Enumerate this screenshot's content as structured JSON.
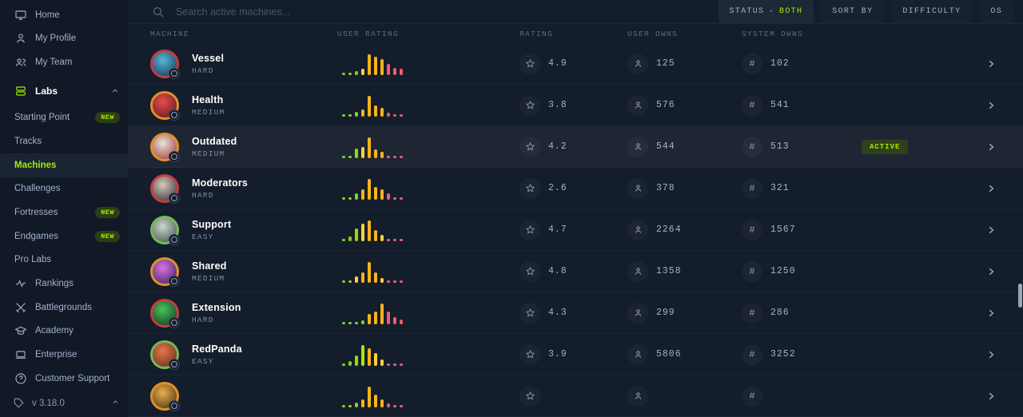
{
  "search": {
    "placeholder": "Search active machines..."
  },
  "filters": {
    "status_label": "STATUS",
    "status_separator": "•",
    "status_value": "BOTH",
    "sort_by_label": "SORT BY",
    "difficulty_label": "DIFFICULTY",
    "os_label": "OS"
  },
  "icons": {
    "system_owns_glyph": "#",
    "row_chevron": "›",
    "section_chevron": "˄"
  },
  "sidebar": {
    "top": [
      {
        "label": "Home"
      },
      {
        "label": "My Profile"
      },
      {
        "label": "My Team"
      },
      {
        "label": "Labs"
      }
    ],
    "labs_sub": [
      {
        "label": "Starting Point",
        "badge": "NEW"
      },
      {
        "label": "Tracks"
      },
      {
        "label": "Machines",
        "active": true
      },
      {
        "label": "Challenges"
      },
      {
        "label": "Fortresses",
        "badge": "NEW"
      },
      {
        "label": "Endgames",
        "badge": "NEW"
      },
      {
        "label": "Pro Labs"
      }
    ],
    "bottom": [
      {
        "label": "Rankings"
      },
      {
        "label": "Battlegrounds"
      },
      {
        "label": "Academy"
      },
      {
        "label": "Enterprise"
      },
      {
        "label": "Customer Support"
      }
    ],
    "version": "v 3.18.0"
  },
  "table": {
    "headers": {
      "machine": "MACHINE",
      "user_rating": "USER RATING",
      "rating": "RATING",
      "user_owns": "USER OWNS",
      "system_owns": "SYSTEM OWNS"
    },
    "active_badge_label": "ACTIVE",
    "rows": [
      {
        "name": "Vessel",
        "difficulty": "HARD",
        "rating": "4.9",
        "user_owns": "125",
        "system_owns": "102",
        "active": false,
        "avatar": {
          "ring": "#c43e3e",
          "c1": "#5ab6d8",
          "c2": "#12304f"
        },
        "histogram": {
          "heights": [
            3,
            3,
            5,
            8,
            26,
            23,
            20,
            14,
            9,
            8
          ],
          "colors": [
            "#7ed321",
            "#7ed321",
            "#7ed321",
            "#f8d347",
            "#ffb21d",
            "#ffb21d",
            "#ffb21d",
            "#ef5c6e",
            "#ef5c6e",
            "#ef5c6e"
          ]
        }
      },
      {
        "name": "Health",
        "difficulty": "MEDIUM",
        "rating": "3.8",
        "user_owns": "576",
        "system_owns": "541",
        "active": false,
        "avatar": {
          "ring": "#e0902a",
          "c1": "#e84c4c",
          "c2": "#551a1a"
        },
        "histogram": {
          "heights": [
            3,
            3,
            6,
            9,
            26,
            14,
            11,
            5,
            3,
            3
          ],
          "colors": [
            "#7ed321",
            "#7ed321",
            "#7ed321",
            "#ffb21d",
            "#ffb21d",
            "#ffb21d",
            "#ffb21d",
            "#ef5c6e",
            "#ef5c6e",
            "#ef5c6e"
          ]
        }
      },
      {
        "name": "Outdated",
        "difficulty": "MEDIUM",
        "rating": "4.2",
        "user_owns": "544",
        "system_owns": "513",
        "active": true,
        "avatar": {
          "ring": "#e0902a",
          "c1": "#e8e4da",
          "c2": "#9c3030"
        },
        "histogram": {
          "heights": [
            3,
            3,
            12,
            14,
            26,
            11,
            8,
            3,
            3,
            3
          ],
          "colors": [
            "#7ed321",
            "#7ed321",
            "#8ee000",
            "#ffd23e",
            "#ffb21d",
            "#ffb21d",
            "#ffb21d",
            "#ef5c6e",
            "#ef5c6e",
            "#ef5c6e"
          ]
        }
      },
      {
        "name": "Moderators",
        "difficulty": "HARD",
        "rating": "2.6",
        "user_owns": "378",
        "system_owns": "321",
        "active": false,
        "avatar": {
          "ring": "#c43e3e",
          "c1": "#d8c8b8",
          "c2": "#2e2838"
        },
        "histogram": {
          "heights": [
            3,
            3,
            8,
            13,
            26,
            16,
            13,
            8,
            3,
            3
          ],
          "colors": [
            "#7ed321",
            "#7ed321",
            "#7ed321",
            "#ffb21d",
            "#ffb21d",
            "#ffb21d",
            "#ffb21d",
            "#ef5c6e",
            "#ef5c6e",
            "#ef5c6e"
          ]
        }
      },
      {
        "name": "Support",
        "difficulty": "EASY",
        "rating": "4.7",
        "user_owns": "2264",
        "system_owns": "1567",
        "active": false,
        "avatar": {
          "ring": "#74b85c",
          "c1": "#cfd4cf",
          "c2": "#35503e"
        },
        "histogram": {
          "heights": [
            3,
            6,
            16,
            22,
            26,
            14,
            8,
            3,
            3,
            3
          ],
          "colors": [
            "#7ed321",
            "#7ed321",
            "#8ee000",
            "#ffd23e",
            "#ffb21d",
            "#ffb21d",
            "#ffd23e",
            "#ef5c6e",
            "#ef5c6e",
            "#ef5c6e"
          ]
        }
      },
      {
        "name": "Shared",
        "difficulty": "MEDIUM",
        "rating": "4.8",
        "user_owns": "1358",
        "system_owns": "1250",
        "active": false,
        "avatar": {
          "ring": "#e0902a",
          "c1": "#d873e0",
          "c2": "#3a1d54"
        },
        "histogram": {
          "heights": [
            3,
            3,
            8,
            13,
            26,
            13,
            6,
            3,
            3,
            3
          ],
          "colors": [
            "#7ed321",
            "#7ed321",
            "#ffd23e",
            "#ffb21d",
            "#ffb21d",
            "#ffb21d",
            "#ffd23e",
            "#ef5c6e",
            "#ef5c6e",
            "#ef5c6e"
          ]
        }
      },
      {
        "name": "Extension",
        "difficulty": "HARD",
        "rating": "4.3",
        "user_owns": "299",
        "system_owns": "286",
        "active": false,
        "avatar": {
          "ring": "#c43e3e",
          "c1": "#46c45a",
          "c2": "#10301c"
        },
        "histogram": {
          "heights": [
            3,
            3,
            3,
            5,
            13,
            16,
            26,
            16,
            9,
            6
          ],
          "colors": [
            "#7ed321",
            "#7ed321",
            "#7ed321",
            "#7ed321",
            "#ffb21d",
            "#ffb21d",
            "#ffb21d",
            "#ef5c6e",
            "#ef5c6e",
            "#ef5c6e"
          ]
        }
      },
      {
        "name": "RedPanda",
        "difficulty": "EASY",
        "rating": "3.9",
        "user_owns": "5806",
        "system_owns": "3252",
        "active": false,
        "avatar": {
          "ring": "#74b85c",
          "c1": "#e8734c",
          "c2": "#5c2c10"
        },
        "histogram": {
          "heights": [
            3,
            6,
            13,
            26,
            22,
            16,
            8,
            3,
            3,
            3
          ],
          "colors": [
            "#7ed321",
            "#7ed321",
            "#8ee000",
            "#9fef00",
            "#ffb21d",
            "#ffd23e",
            "#ffd23e",
            "#ef5c6e",
            "#ef5c6e",
            "#ef5c6e"
          ]
        }
      },
      {
        "name": "",
        "difficulty": "",
        "rating": "",
        "user_owns": "",
        "system_owns": "",
        "active": false,
        "partial": true,
        "avatar": {
          "ring": "#e0902a",
          "c1": "#e8b04c",
          "c2": "#402810"
        },
        "histogram": {
          "heights": [
            3,
            3,
            6,
            10,
            26,
            16,
            10,
            5,
            3,
            3
          ],
          "colors": [
            "#7ed321",
            "#7ed321",
            "#7ed321",
            "#ffb21d",
            "#ffb21d",
            "#ffb21d",
            "#ffb21d",
            "#ef5c6e",
            "#ef5c6e",
            "#ef5c6e"
          ]
        }
      }
    ]
  },
  "colors": {
    "accent_green": "#9fef00",
    "bg_main": "#141d2b",
    "bg_sidebar": "#111926"
  }
}
